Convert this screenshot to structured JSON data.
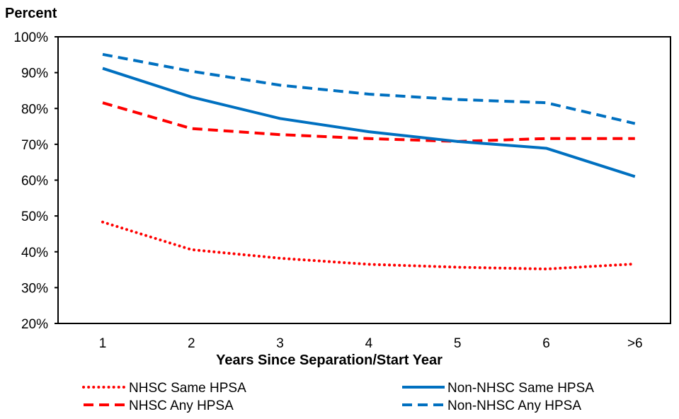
{
  "chart_data": {
    "type": "line",
    "ylabel": "Percent",
    "xlabel": "Years Since Separation/Start Year",
    "categories": [
      "1",
      "2",
      "3",
      "4",
      "5",
      "6",
      ">6"
    ],
    "ylim": [
      20,
      100
    ],
    "yticks": [
      "20%",
      "30%",
      "40%",
      "50%",
      "60%",
      "70%",
      "80%",
      "90%",
      "100%"
    ],
    "grid": false,
    "legend_position": "bottom",
    "series": [
      {
        "name": "NHSC Same HPSA",
        "color": "#FF0000",
        "style": "dotted",
        "values": [
          48.3,
          40.6,
          38.2,
          36.5,
          35.7,
          35.2,
          36.6
        ]
      },
      {
        "name": "NHSC Any HPSA",
        "color": "#FF0000",
        "style": "dashed",
        "values": [
          81.6,
          74.4,
          72.7,
          71.6,
          70.8,
          71.6,
          71.6
        ]
      },
      {
        "name": "Non-NHSC Same HPSA",
        "color": "#0070C0",
        "style": "solid",
        "values": [
          91.2,
          83.2,
          77.2,
          73.5,
          70.8,
          68.9,
          61.0
        ]
      },
      {
        "name": "Non-NHSC Any HPSA",
        "color": "#0070C0",
        "style": "dashed",
        "values": [
          95.1,
          90.4,
          86.5,
          84.0,
          82.5,
          81.6,
          75.8
        ]
      }
    ]
  }
}
